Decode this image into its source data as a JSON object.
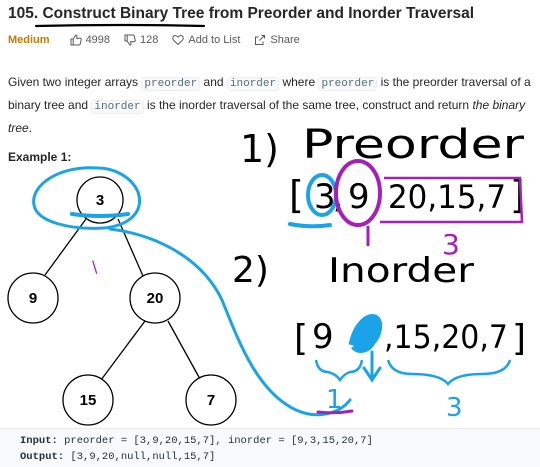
{
  "problem": {
    "number": "105.",
    "title": "Construct Binary Tree from Preorder and Inorder Traversal",
    "difficulty": "Medium",
    "likes": "4998",
    "dislikes": "128",
    "add_to_list": "Add to List",
    "share": "Share"
  },
  "description": {
    "p1": "Given two integer arrays ",
    "code1": "preorder",
    "p2": " and ",
    "code2": "inorder",
    "p3": " where ",
    "code3": "preorder",
    "p4": " is the preorder traversal of a binary tree and ",
    "code4": "inorder",
    "p5": " is the inorder traversal of the same tree, construct and return ",
    "emph": "the binary tree",
    "p6": "."
  },
  "example": {
    "label": "Example 1:",
    "nodes": [
      "3",
      "9",
      "20",
      "15",
      "7"
    ],
    "input_label": "Input:",
    "input_value": " preorder = [3,9,20,15,7], inorder = [9,3,15,20,7]",
    "output_label": "Output:",
    "output_value": " [3,9,20,null,null,15,7]"
  },
  "annotations": {
    "step1": "1)",
    "word1": "Preorder",
    "array1_open": "[",
    "array1_first": "3",
    "array1_sep": ",",
    "array1_second": "9",
    "array1_rest": "20,15,7",
    "array1_close": "]",
    "count_right_top": "3",
    "mark_one_top": "1",
    "step2": "2)",
    "word2": "Inorder",
    "array2_open": "[",
    "array2_first": "9",
    "array2_rest": ",15,20,7",
    "array2_close": "]",
    "count_left": "1",
    "count_right_bottom": "3",
    "tick_mark": "\\"
  },
  "colors": {
    "blue_ink": "#1aa3e8",
    "purple_ink": "#a321b8",
    "medium": "#c67a00"
  }
}
